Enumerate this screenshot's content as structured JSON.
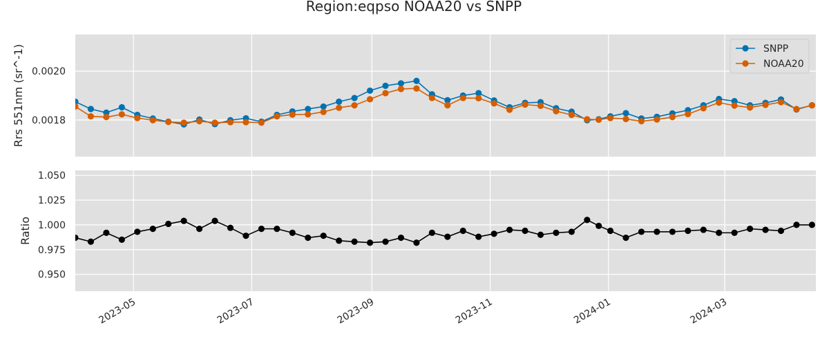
{
  "title": "Region:eqpso NOAA20 vs SNPP",
  "chart_data": [
    {
      "type": "line",
      "ylabel": "Rrs 551nm (sr^-1)",
      "ylim": [
        0.00165,
        0.00215
      ],
      "yticks": [
        0.0018,
        0.002
      ],
      "ytick_labels": [
        "0.0018",
        "0.0020"
      ],
      "legend_position": "top-right",
      "grid": true,
      "x": [
        "2023-04-01",
        "2023-04-09",
        "2023-04-17",
        "2023-04-25",
        "2023-05-03",
        "2023-05-11",
        "2023-05-19",
        "2023-05-27",
        "2023-06-04",
        "2023-06-12",
        "2023-06-20",
        "2023-06-28",
        "2023-07-06",
        "2023-07-14",
        "2023-07-22",
        "2023-07-30",
        "2023-08-07",
        "2023-08-15",
        "2023-08-23",
        "2023-08-31",
        "2023-09-08",
        "2023-09-16",
        "2023-09-24",
        "2023-10-02",
        "2023-10-10",
        "2023-10-18",
        "2023-10-26",
        "2023-11-03",
        "2023-11-11",
        "2023-11-19",
        "2023-11-27",
        "2023-12-05",
        "2023-12-13",
        "2023-12-21",
        "2023-12-27",
        "2024-01-02",
        "2024-01-10",
        "2024-01-18",
        "2024-01-26",
        "2024-02-03",
        "2024-02-11",
        "2024-02-19",
        "2024-02-27",
        "2024-03-06",
        "2024-03-14",
        "2024-03-22",
        "2024-03-30",
        "2024-04-07",
        "2024-04-15"
      ],
      "series": [
        {
          "name": "SNPP",
          "color": "#0072b2",
          "values": [
            0.001875,
            0.001845,
            0.00183,
            0.001852,
            0.001821,
            0.001806,
            0.001793,
            0.001782,
            0.001802,
            0.001783,
            0.001799,
            0.001807,
            0.001793,
            0.001821,
            0.001835,
            0.001845,
            0.001855,
            0.001875,
            0.00189,
            0.00192,
            0.00194,
            0.00195,
            0.00196,
            0.001905,
            0.001881,
            0.0019,
            0.00191,
            0.00188,
            0.001852,
            0.00187,
            0.001873,
            0.001848,
            0.001834,
            0.001799,
            0.001803,
            0.001815,
            0.001828,
            0.001806,
            0.001813,
            0.001827,
            0.00184,
            0.00186,
            0.001886,
            0.001877,
            0.00186,
            0.00187,
            0.001884,
            0.001843,
            0.00186
          ]
        },
        {
          "name": "NOAA20",
          "color": "#d55e00",
          "values": [
            0.001855,
            0.001815,
            0.001812,
            0.001823,
            0.001808,
            0.001799,
            0.001792,
            0.001789,
            0.001795,
            0.001789,
            0.001791,
            0.001791,
            0.001789,
            0.001815,
            0.001822,
            0.001823,
            0.001833,
            0.00185,
            0.00186,
            0.001885,
            0.00191,
            0.001927,
            0.001929,
            0.00189,
            0.00186,
            0.00189,
            0.001889,
            0.001868,
            0.001842,
            0.001863,
            0.001858,
            0.001836,
            0.001821,
            0.001803,
            0.001801,
            0.001808,
            0.001804,
            0.001795,
            0.001802,
            0.001812,
            0.001824,
            0.001848,
            0.001871,
            0.001859,
            0.001851,
            0.001862,
            0.001873,
            0.001845,
            0.00186
          ]
        }
      ]
    },
    {
      "type": "line",
      "ylabel": "Ratio",
      "ylim": [
        0.933,
        1.055
      ],
      "yticks": [
        0.95,
        0.975,
        1.0,
        1.025,
        1.05
      ],
      "ytick_labels": [
        "0.950",
        "0.975",
        "1.000",
        "1.025",
        "1.050"
      ],
      "grid": true,
      "x_tick_labels": [
        "2023-05",
        "2023-07",
        "2023-09",
        "2023-11",
        "2024-01",
        "2024-03"
      ],
      "x_tick_dates": [
        "2023-05-01",
        "2023-07-01",
        "2023-09-01",
        "2023-11-01",
        "2024-01-01",
        "2024-03-01"
      ],
      "xlim": [
        "2023-04-01",
        "2024-04-17"
      ],
      "series": [
        {
          "color": "#000000",
          "values": [
            0.987,
            0.983,
            0.992,
            0.985,
            0.993,
            0.996,
            1.001,
            1.004,
            0.996,
            1.004,
            0.997,
            0.989,
            0.996,
            0.996,
            0.992,
            0.987,
            0.989,
            0.984,
            0.983,
            0.982,
            0.983,
            0.987,
            0.982,
            0.992,
            0.988,
            0.994,
            0.988,
            0.991,
            0.995,
            0.994,
            0.99,
            0.992,
            0.993,
            1.005,
            0.999,
            0.994,
            0.987,
            0.993,
            0.993,
            0.993,
            0.994,
            0.995,
            0.992,
            0.992,
            0.996,
            0.995,
            0.994,
            1.0,
            1.0
          ]
        }
      ]
    }
  ]
}
